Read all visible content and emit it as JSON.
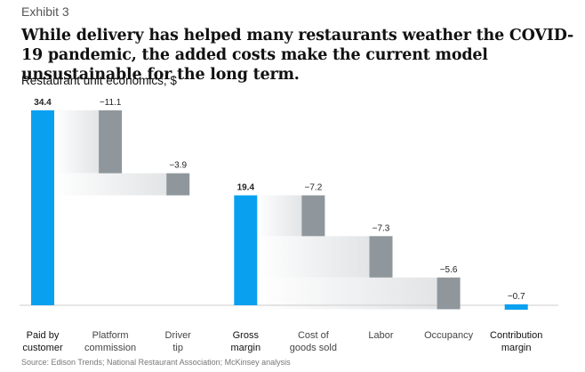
{
  "header": {
    "exhibit": "Exhibit 3",
    "title": "While delivery has helped many restaurants weather the COVID-19 pandemic, the added costs make the current model unsustainable for the long term.",
    "subtitle": "Restaurant unit economics, $"
  },
  "footer": {
    "source": "Source: Edison Trends; National Restaurant Association; McKinsey analysis"
  },
  "colors": {
    "total": "#0aa0f0",
    "decrease": "#8f979c",
    "connector_light": "#ffffff",
    "connector_dark": "#e2e4e6",
    "axis": "#cccccc"
  },
  "chart_data": {
    "type": "bar",
    "subtype": "waterfall",
    "title": "While delivery has helped many restaurants weather the COVID-19 pandemic, the added costs make the current model unsustainable for the long term.",
    "ylabel": "Restaurant unit economics, $",
    "xlabel": "",
    "ylim": [
      0,
      34.4
    ],
    "grid": false,
    "categories": [
      [
        "Paid by",
        "customer"
      ],
      [
        "Platform",
        "commission"
      ],
      [
        "Driver",
        "tip"
      ],
      [
        "Gross",
        "margin"
      ],
      [
        "Cost of",
        "goods sold"
      ],
      [
        "Labor"
      ],
      [
        "Occupancy"
      ],
      [
        "Contribution",
        "margin"
      ]
    ],
    "bars": [
      {
        "label": "Paid by customer",
        "value": 34.4,
        "kind": "total",
        "display": "34.4",
        "bold": true
      },
      {
        "label": "Platform commission",
        "value": -11.1,
        "kind": "decrease",
        "display": "−11.1",
        "bold": false
      },
      {
        "label": "Driver tip",
        "value": -3.9,
        "kind": "decrease",
        "display": "−3.9",
        "bold": false
      },
      {
        "label": "Gross margin",
        "value": 19.4,
        "kind": "total",
        "display": "19.4",
        "bold": true
      },
      {
        "label": "Cost of goods sold",
        "value": -7.2,
        "kind": "decrease",
        "display": "−7.2",
        "bold": false
      },
      {
        "label": "Labor",
        "value": -7.3,
        "kind": "decrease",
        "display": "−7.3",
        "bold": false
      },
      {
        "label": "Occupancy",
        "value": -5.6,
        "kind": "decrease",
        "display": "−5.6",
        "bold": false
      },
      {
        "label": "Contribution margin",
        "value": -0.7,
        "kind": "total",
        "display": "−0.7",
        "bold": true
      }
    ]
  }
}
